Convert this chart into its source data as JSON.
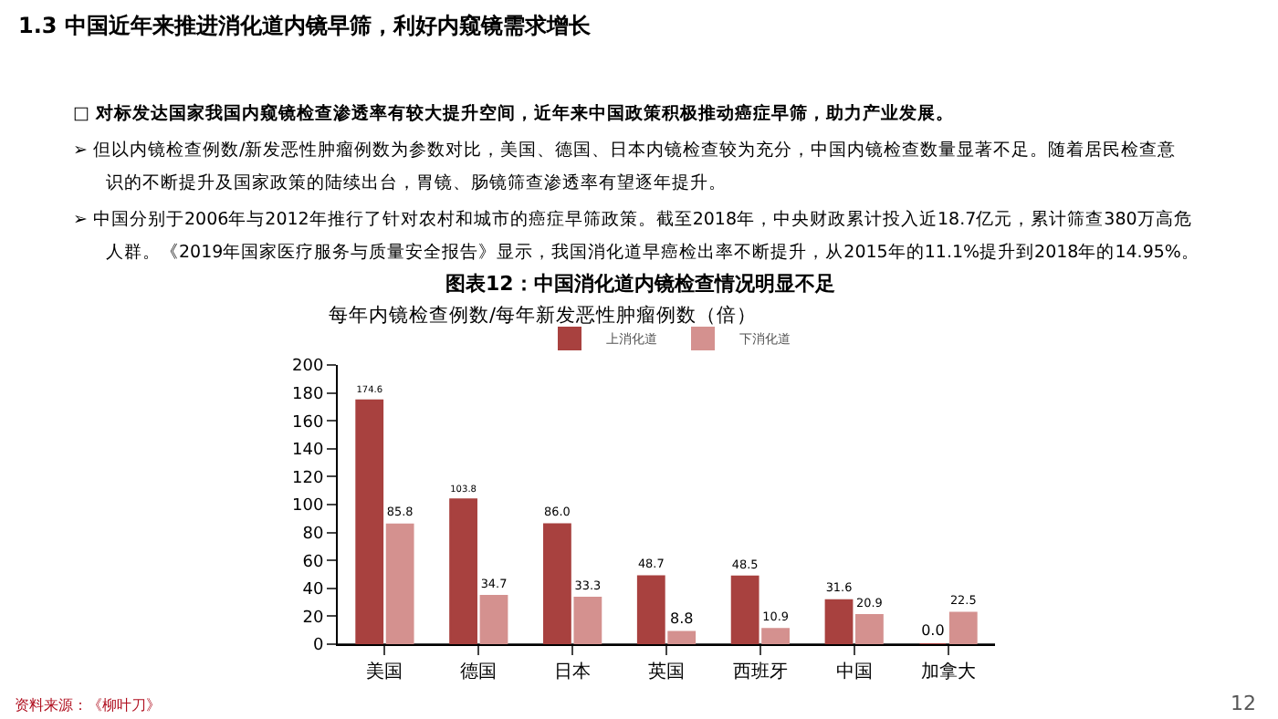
{
  "chart_data": {
    "type": "bar",
    "title": "1.3 中国近年来推进消化道内镜早筛，利好内窥镜需求增长",
    "subtitle": "图表12：中国消化道内镜检查情况明显不足",
    "ylabel": "每年内镜检查例数/每年新发恶性肿瘤例数（倍）",
    "categories": [
      "美国",
      "德国",
      "日本",
      "英国",
      "西班牙",
      "中国",
      "加拿大"
    ],
    "series": [
      {
        "name": "上消化道",
        "color": "#a8413f",
        "values": [
          174.6,
          103.8,
          86.0,
          48.7,
          48.5,
          31.6,
          0.0
        ],
        "value_labels": [
          "174.6",
          "103.8",
          "86.0",
          "48.7",
          "48.5",
          "31.6",
          "0.0"
        ]
      },
      {
        "name": "下消化道",
        "color": "#d4918f",
        "values": [
          85.8,
          34.7,
          33.3,
          8.8,
          10.9,
          20.9,
          22.5
        ],
        "value_labels": [
          "85.8",
          "34.7",
          "33.3",
          "8.8",
          "10.9",
          "20.9",
          "22.5"
        ]
      }
    ],
    "ylim": [
      0,
      200
    ],
    "yticks": [
      0,
      20,
      40,
      60,
      80,
      100,
      120,
      140,
      160,
      180,
      200
    ],
    "legend": "top",
    "annotations": [
      "□ 对标发达国家我国内窥镜检查渗透率有较大提升空间，近年来中国政策积极推动癌症早筛，助力产业发展。",
      "➢ 但以内镜检查例数/新发恶性肿瘤例数为参数对比，美国、德国、日本内镜检查较为充分，中国内镜检查数量显著不足。随着居民检查意",
      "识的不断提升及国家政策的陆续出台，胃镜、肠镜筛查渗透率有望逐年提升。",
      "➢ 中国分别于2006年与2012年推行了针对农村和城市的癌症早筛政策。截至2018年，中央财政累计投入近18.7亿元，累计筛查380万高危",
      "人群。《2019年国家医疗服务与质量安全报告》显示，我国消化道早癌检出率不断提升，从2015年的11.1%提升到2018年的14.95%。",
      "资料来源：《柳叶刀》",
      "12"
    ]
  }
}
